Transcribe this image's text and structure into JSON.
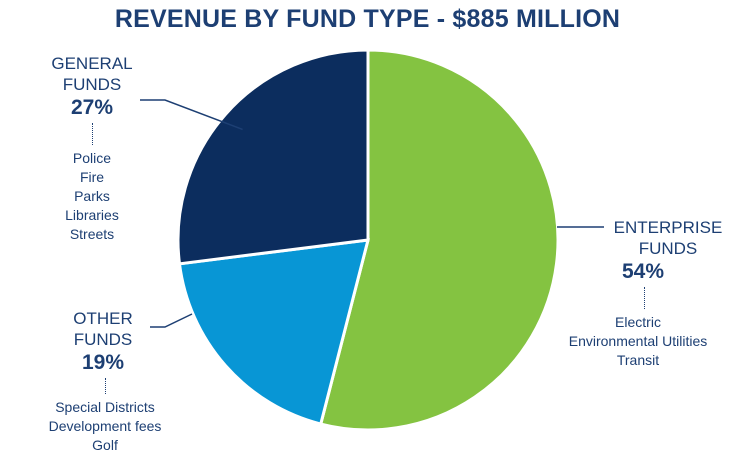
{
  "colors": {
    "title": "#1d3f73",
    "text": "#1d3f73",
    "general": "#0c2d5e",
    "enterprise": "#84c341",
    "other": "#0896d5"
  },
  "chart_data": {
    "type": "pie",
    "title": "REVENUE BY FUND TYPE - $885 MILLION",
    "slices": [
      {
        "label": "ENTERPRISE FUNDS",
        "value": 54,
        "value_label": "54%",
        "items": [
          "Electric",
          "Environmental Utilities",
          "Transit"
        ]
      },
      {
        "label": "OTHER FUNDS",
        "value": 19,
        "value_label": "19%",
        "items": [
          "Special Districts",
          "Development fees",
          "Golf"
        ]
      },
      {
        "label": "GENERAL FUNDS",
        "value": 27,
        "value_label": "27%",
        "items": [
          "Police",
          "Fire",
          "Parks",
          "Libraries",
          "Streets"
        ]
      }
    ]
  }
}
